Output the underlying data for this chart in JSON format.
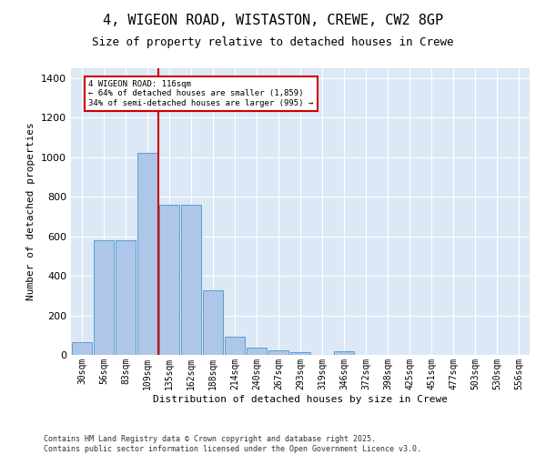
{
  "title": "4, WIGEON ROAD, WISTASTON, CREWE, CW2 8GP",
  "subtitle": "Size of property relative to detached houses in Crewe",
  "xlabel": "Distribution of detached houses by size in Crewe",
  "ylabel": "Number of detached properties",
  "categories": [
    "30sqm",
    "56sqm",
    "83sqm",
    "109sqm",
    "135sqm",
    "162sqm",
    "188sqm",
    "214sqm",
    "240sqm",
    "267sqm",
    "293sqm",
    "319sqm",
    "346sqm",
    "372sqm",
    "398sqm",
    "425sqm",
    "451sqm",
    "477sqm",
    "503sqm",
    "530sqm",
    "556sqm"
  ],
  "values": [
    65,
    580,
    580,
    1020,
    760,
    760,
    325,
    90,
    38,
    25,
    15,
    0,
    20,
    0,
    0,
    0,
    0,
    0,
    0,
    0,
    0
  ],
  "bar_color": "#aec6e8",
  "bar_edge_color": "#5a9fd4",
  "reference_line_color": "#cc0000",
  "annotation_text": "4 WIGEON ROAD: 116sqm\n← 64% of detached houses are smaller (1,859)\n34% of semi-detached houses are larger (995) →",
  "annotation_box_color": "#cc0000",
  "ylim": [
    0,
    1450
  ],
  "background_color": "#dce8f5",
  "footer_line1": "Contains HM Land Registry data © Crown copyright and database right 2025.",
  "footer_line2": "Contains public sector information licensed under the Open Government Licence v3.0.",
  "title_fontsize": 11,
  "axis_fontsize": 8,
  "tick_fontsize": 7,
  "footer_fontsize": 6
}
